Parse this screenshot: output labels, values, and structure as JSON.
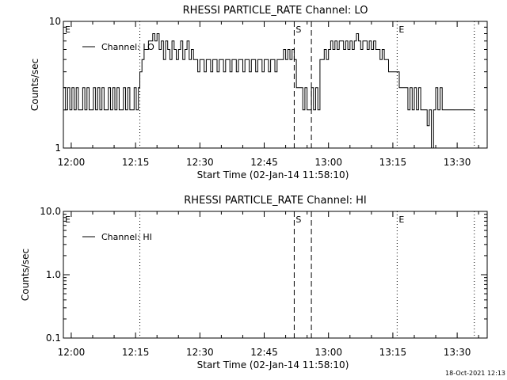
{
  "footer": {
    "timestamp": "18-Oct-2021 12:13"
  },
  "chart_data": [
    {
      "type": "line",
      "title": "RHESSI PARTICLE_RATE Channel: LO",
      "xlabel": "Start Time (02-Jan-14 11:58:10)",
      "ylabel": "Counts/sec",
      "yscale": "log",
      "xlim": [
        "11:58:10",
        "13:37:00"
      ],
      "ylim": [
        1,
        10
      ],
      "xticks": [
        "12:00",
        "12:15",
        "12:30",
        "12:45",
        "13:00",
        "13:15",
        "13:30"
      ],
      "yticks": [
        "1",
        "10"
      ],
      "legend": {
        "label": "Channel: LO",
        "placement": "top-left"
      },
      "markers": [
        {
          "time": "11:58:10",
          "label": "E",
          "style": "dotted"
        },
        {
          "time": "12:16:00",
          "label": "",
          "style": "dotted"
        },
        {
          "time": "12:52:00",
          "label": "S",
          "style": "dashed"
        },
        {
          "time": "12:56:00",
          "label": "",
          "style": "dashed"
        },
        {
          "time": "13:16:00",
          "label": "E",
          "style": "dotted"
        },
        {
          "time": "13:34:00",
          "label": "",
          "style": "dotted"
        }
      ],
      "series": [
        {
          "name": "Channel: LO",
          "points": [
            [
              "11:58:10",
              3
            ],
            [
              "11:58:40",
              2
            ],
            [
              "11:59:10",
              3
            ],
            [
              "11:59:40",
              2
            ],
            [
              "12:00:10",
              3
            ],
            [
              "12:00:40",
              2
            ],
            [
              "12:01:10",
              3
            ],
            [
              "12:01:40",
              2
            ],
            [
              "12:02:10",
              2
            ],
            [
              "12:02:40",
              3
            ],
            [
              "12:03:10",
              2
            ],
            [
              "12:03:40",
              3
            ],
            [
              "12:04:10",
              2
            ],
            [
              "12:04:40",
              2
            ],
            [
              "12:05:10",
              3
            ],
            [
              "12:05:40",
              2
            ],
            [
              "12:06:10",
              3
            ],
            [
              "12:06:40",
              2
            ],
            [
              "12:07:10",
              3
            ],
            [
              "12:07:40",
              2
            ],
            [
              "12:08:10",
              2
            ],
            [
              "12:08:40",
              3
            ],
            [
              "12:09:10",
              2
            ],
            [
              "12:09:40",
              3
            ],
            [
              "12:10:10",
              2
            ],
            [
              "12:10:40",
              3
            ],
            [
              "12:11:10",
              2
            ],
            [
              "12:11:40",
              2
            ],
            [
              "12:12:10",
              3
            ],
            [
              "12:12:40",
              2
            ],
            [
              "12:13:10",
              3
            ],
            [
              "12:13:40",
              2
            ],
            [
              "12:14:10",
              2
            ],
            [
              "12:14:40",
              3
            ],
            [
              "12:15:10",
              2
            ],
            [
              "12:15:40",
              3
            ],
            [
              "12:16:00",
              4
            ],
            [
              "12:16:30",
              5
            ],
            [
              "12:17:00",
              6
            ],
            [
              "12:17:30",
              6
            ],
            [
              "12:18:00",
              7
            ],
            [
              "12:18:30",
              7
            ],
            [
              "12:19:00",
              8
            ],
            [
              "12:19:30",
              7
            ],
            [
              "12:20:00",
              8
            ],
            [
              "12:20:30",
              6
            ],
            [
              "12:21:00",
              7
            ],
            [
              "12:21:30",
              5
            ],
            [
              "12:22:00",
              7
            ],
            [
              "12:22:30",
              6
            ],
            [
              "12:23:00",
              5
            ],
            [
              "12:23:30",
              7
            ],
            [
              "12:24:00",
              6
            ],
            [
              "12:24:30",
              5
            ],
            [
              "12:25:00",
              6
            ],
            [
              "12:25:30",
              7
            ],
            [
              "12:26:00",
              5
            ],
            [
              "12:26:30",
              6
            ],
            [
              "12:27:00",
              7
            ],
            [
              "12:27:30",
              5
            ],
            [
              "12:28:00",
              6
            ],
            [
              "12:28:30",
              5
            ],
            [
              "12:29:00",
              5
            ],
            [
              "12:29:30",
              4
            ],
            [
              "12:30:00",
              5
            ],
            [
              "12:30:30",
              5
            ],
            [
              "12:31:00",
              4
            ],
            [
              "12:31:30",
              5
            ],
            [
              "12:32:00",
              5
            ],
            [
              "12:32:30",
              4
            ],
            [
              "12:33:00",
              5
            ],
            [
              "12:33:30",
              5
            ],
            [
              "12:34:00",
              4
            ],
            [
              "12:34:30",
              5
            ],
            [
              "12:35:00",
              5
            ],
            [
              "12:35:30",
              4
            ],
            [
              "12:36:00",
              5
            ],
            [
              "12:36:30",
              5
            ],
            [
              "12:37:00",
              4
            ],
            [
              "12:37:30",
              5
            ],
            [
              "12:38:00",
              5
            ],
            [
              "12:38:30",
              4
            ],
            [
              "12:39:00",
              5
            ],
            [
              "12:39:30",
              5
            ],
            [
              "12:40:00",
              4
            ],
            [
              "12:40:30",
              5
            ],
            [
              "12:41:00",
              5
            ],
            [
              "12:41:30",
              4
            ],
            [
              "12:42:00",
              5
            ],
            [
              "12:42:30",
              5
            ],
            [
              "12:43:00",
              4
            ],
            [
              "12:43:30",
              5
            ],
            [
              "12:44:00",
              5
            ],
            [
              "12:44:30",
              4
            ],
            [
              "12:45:00",
              5
            ],
            [
              "12:45:30",
              5
            ],
            [
              "12:46:00",
              4
            ],
            [
              "12:46:30",
              5
            ],
            [
              "12:47:00",
              5
            ],
            [
              "12:47:30",
              4
            ],
            [
              "12:48:00",
              5
            ],
            [
              "12:48:30",
              5
            ],
            [
              "12:49:00",
              5
            ],
            [
              "12:49:30",
              6
            ],
            [
              "12:50:00",
              5
            ],
            [
              "12:50:30",
              6
            ],
            [
              "12:51:00",
              5
            ],
            [
              "12:51:30",
              6
            ],
            [
              "12:52:00",
              5
            ],
            [
              "12:52:30",
              3
            ],
            [
              "12:53:00",
              3
            ],
            [
              "12:53:30",
              3
            ],
            [
              "12:54:00",
              2
            ],
            [
              "12:54:30",
              3
            ],
            [
              "12:55:00",
              2
            ],
            [
              "12:55:30",
              2
            ],
            [
              "12:56:00",
              3
            ],
            [
              "12:56:30",
              2
            ],
            [
              "12:57:00",
              3
            ],
            [
              "12:57:30",
              2
            ],
            [
              "12:58:00",
              5
            ],
            [
              "12:58:30",
              5
            ],
            [
              "12:59:00",
              6
            ],
            [
              "12:59:30",
              5
            ],
            [
              "13:00:00",
              6
            ],
            [
              "13:00:30",
              7
            ],
            [
              "13:01:00",
              6
            ],
            [
              "13:01:30",
              7
            ],
            [
              "13:02:00",
              6
            ],
            [
              "13:02:30",
              7
            ],
            [
              "13:03:00",
              7
            ],
            [
              "13:03:30",
              6
            ],
            [
              "13:04:00",
              7
            ],
            [
              "13:04:30",
              6
            ],
            [
              "13:05:00",
              7
            ],
            [
              "13:05:30",
              6
            ],
            [
              "13:06:00",
              7
            ],
            [
              "13:06:30",
              8
            ],
            [
              "13:07:00",
              7
            ],
            [
              "13:07:30",
              6
            ],
            [
              "13:08:00",
              7
            ],
            [
              "13:08:30",
              7
            ],
            [
              "13:09:00",
              6
            ],
            [
              "13:09:30",
              7
            ],
            [
              "13:10:00",
              6
            ],
            [
              "13:10:30",
              7
            ],
            [
              "13:11:00",
              6
            ],
            [
              "13:11:30",
              6
            ],
            [
              "13:12:00",
              5
            ],
            [
              "13:12:30",
              6
            ],
            [
              "13:13:00",
              5
            ],
            [
              "13:13:30",
              5
            ],
            [
              "13:14:00",
              4
            ],
            [
              "13:14:30",
              4
            ],
            [
              "13:15:00",
              4
            ],
            [
              "13:15:30",
              4
            ],
            [
              "13:16:00",
              4
            ],
            [
              "13:16:30",
              3
            ],
            [
              "13:17:00",
              3
            ],
            [
              "13:17:30",
              3
            ],
            [
              "13:18:00",
              3
            ],
            [
              "13:18:30",
              2
            ],
            [
              "13:19:00",
              3
            ],
            [
              "13:19:30",
              2
            ],
            [
              "13:20:00",
              3
            ],
            [
              "13:20:30",
              2
            ],
            [
              "13:21:00",
              3
            ],
            [
              "13:21:30",
              2
            ],
            [
              "13:22:00",
              2
            ],
            [
              "13:22:30",
              2
            ],
            [
              "13:23:00",
              1.5
            ],
            [
              "13:23:30",
              2
            ],
            [
              "13:24:00",
              1
            ],
            [
              "13:24:30",
              2
            ],
            [
              "13:25:00",
              3
            ],
            [
              "13:25:30",
              2
            ],
            [
              "13:26:00",
              3
            ],
            [
              "13:26:30",
              2
            ],
            [
              "13:27:00",
              2
            ],
            [
              "13:28:00",
              2
            ],
            [
              "13:29:00",
              2
            ],
            [
              "13:30:00",
              2
            ],
            [
              "13:31:00",
              2
            ],
            [
              "13:32:00",
              2
            ],
            [
              "13:33:00",
              2
            ],
            [
              "13:34:00",
              2
            ]
          ]
        }
      ]
    },
    {
      "type": "line",
      "title": "RHESSI PARTICLE_RATE Channel: HI",
      "xlabel": "Start Time (02-Jan-14 11:58:10)",
      "ylabel": "Counts/sec",
      "yscale": "log",
      "xlim": [
        "11:58:10",
        "13:37:00"
      ],
      "ylim": [
        0.1,
        10.0
      ],
      "xticks": [
        "12:00",
        "12:15",
        "12:30",
        "12:45",
        "13:00",
        "13:15",
        "13:30"
      ],
      "yticks": [
        "0.1",
        "1.0",
        "10.0"
      ],
      "legend": {
        "label": "Channel: HI",
        "placement": "top-left"
      },
      "markers": [
        {
          "time": "11:58:10",
          "label": "E",
          "style": "dotted"
        },
        {
          "time": "12:16:00",
          "label": "",
          "style": "dotted"
        },
        {
          "time": "12:52:00",
          "label": "S",
          "style": "dashed"
        },
        {
          "time": "12:56:00",
          "label": "",
          "style": "dashed"
        },
        {
          "time": "13:16:00",
          "label": "E",
          "style": "dotted"
        },
        {
          "time": "13:34:00",
          "label": "",
          "style": "dotted"
        }
      ],
      "series": [
        {
          "name": "Channel: HI",
          "points": []
        }
      ]
    }
  ]
}
